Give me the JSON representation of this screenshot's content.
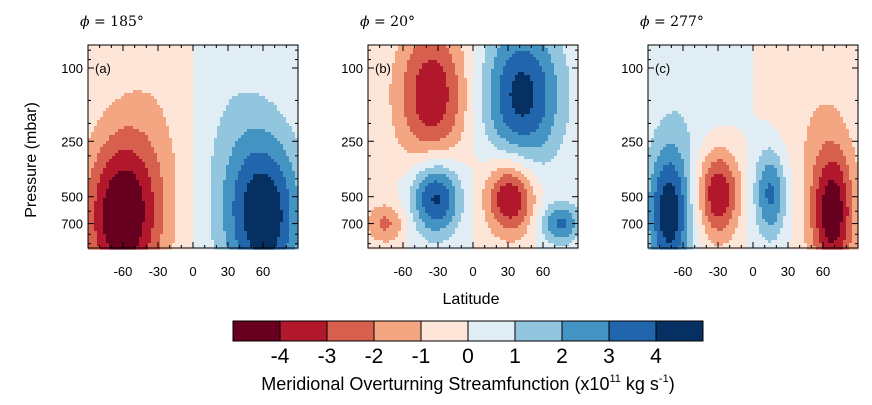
{
  "chart_data": {
    "type": "contour",
    "colorbar": {
      "colors": [
        "#67001f",
        "#b2182b",
        "#d6604d",
        "#f4a582",
        "#fde5d8",
        "#e1edf5",
        "#92c5de",
        "#4393c3",
        "#2166ac",
        "#053061"
      ],
      "levels": [
        -4,
        -3,
        -2,
        -1,
        0,
        1,
        2,
        3,
        4
      ],
      "tick_labels": [
        "-4",
        "-3",
        "-2",
        "-1",
        "0",
        "1",
        "2",
        "3",
        "4"
      ],
      "title_main": "Meridional Overturning Streamfunction (x10",
      "title_exp": "11",
      "title_unit": " kg s",
      "title_unit_exp": "-1",
      "title_close": ")"
    },
    "ylabel": "Pressure (mbar)",
    "xlabel": "Latitude",
    "x_ticks": [
      -60,
      -30,
      0,
      30,
      60
    ],
    "x_tick_labels": [
      "-60",
      "-30",
      "0",
      "30",
      "60"
    ],
    "xlim": [
      -90,
      90
    ],
    "y_ticks": [
      100,
      250,
      500,
      700
    ],
    "y_tick_labels": [
      "100",
      "250",
      "500",
      "700"
    ],
    "panels": [
      {
        "title_symbol": "ϕ",
        "title_value": " = 185°",
        "label": "(a)",
        "background": 0.5,
        "cells": [
          {
            "lat": -62,
            "p": 650,
            "amp": -4.6,
            "sx": 22,
            "sy": 2.0
          },
          {
            "lat": -35,
            "p": 350,
            "amp": -1.2,
            "sx": 30,
            "sy": 3.0
          },
          {
            "lat": 62,
            "p": 650,
            "amp": 4.4,
            "sx": 22,
            "sy": 2.0
          },
          {
            "lat": 35,
            "p": 350,
            "amp": 1.2,
            "sx": 30,
            "sy": 3.0
          }
        ]
      },
      {
        "title_symbol": "ϕ",
        "title_value": " = 20°",
        "label": "(b)",
        "background": 0.5,
        "cells": [
          {
            "lat": -35,
            "p": 140,
            "amp": -3.8,
            "sx": 22,
            "sy": 1.9
          },
          {
            "lat": 42,
            "p": 140,
            "amp": 4.4,
            "sx": 24,
            "sy": 1.9
          },
          {
            "lat": -32,
            "p": 500,
            "amp": 4.6,
            "sx": 15,
            "sy": 1.4
          },
          {
            "lat": 32,
            "p": 500,
            "amp": -4.4,
            "sx": 15,
            "sy": 1.4
          },
          {
            "lat": -75,
            "p": 700,
            "amp": -2.2,
            "sx": 12,
            "sy": 1.2
          },
          {
            "lat": 75,
            "p": 700,
            "amp": 3.2,
            "sx": 12,
            "sy": 1.2
          }
        ]
      },
      {
        "title_symbol": "ϕ",
        "title_value": " = 277°",
        "label": "(c)",
        "background": 0.5,
        "cells": [
          {
            "lat": -72,
            "p": 620,
            "amp": 4.6,
            "sx": 13,
            "sy": 1.8
          },
          {
            "lat": -30,
            "p": 480,
            "amp": -4.2,
            "sx": 13,
            "sy": 1.5
          },
          {
            "lat": 15,
            "p": 480,
            "amp": 3.4,
            "sx": 10,
            "sy": 1.5
          },
          {
            "lat": 68,
            "p": 620,
            "amp": -4.6,
            "sx": 13,
            "sy": 1.8
          },
          {
            "lat": 50,
            "p": 160,
            "amp": -0.8,
            "sx": 30,
            "sy": 3.0
          },
          {
            "lat": -50,
            "p": 160,
            "amp": 0.7,
            "sx": 30,
            "sy": 3.0
          }
        ]
      }
    ]
  }
}
